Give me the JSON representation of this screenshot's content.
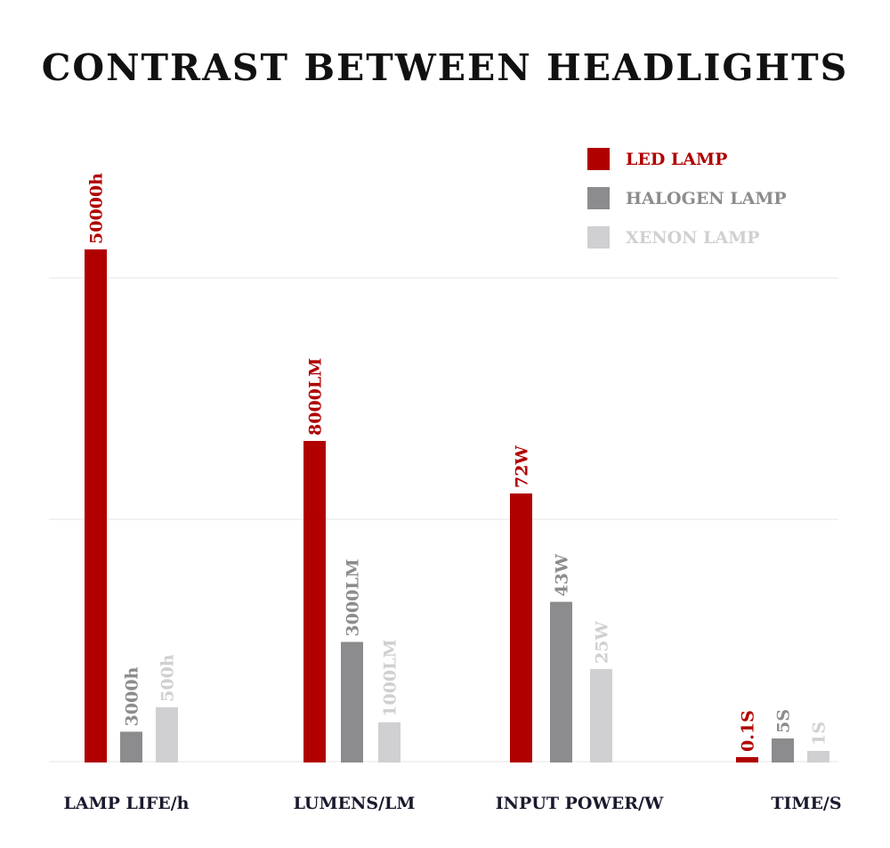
{
  "colors": {
    "led": "#b00000",
    "halogen": "#8c8c8e",
    "xenon": "#d0d0d2",
    "grid": "#e6e6e6",
    "category_text": "#1a1a2e"
  },
  "chart_data": {
    "type": "bar",
    "title": "CONTRAST BETWEEN HEADLIGHTS",
    "legend_position": "top-right",
    "grid": true,
    "series": [
      {
        "name": "LED LAMP",
        "color": "#b00000"
      },
      {
        "name": "HALOGEN LAMP",
        "color": "#8c8c8e"
      },
      {
        "name": "XENON LAMP",
        "color": "#d0d0d2"
      }
    ],
    "groups": [
      {
        "category": "LAMP LIFE/h",
        "values": [
          50000,
          3000,
          500
        ],
        "labels": [
          "50000h",
          "3000h",
          "500h"
        ]
      },
      {
        "category": "LUMENS/LM",
        "values": [
          8000,
          3000,
          1000
        ],
        "labels": [
          "8000LM",
          "3000LM",
          "1000LM"
        ]
      },
      {
        "category": "INPUT POWER/W",
        "values": [
          72,
          43,
          25
        ],
        "labels": [
          "72W",
          "43W",
          "25W"
        ]
      },
      {
        "category": "TIME/S",
        "values": [
          0.1,
          5,
          1
        ],
        "labels": [
          "0.1S",
          "5S",
          "1S"
        ]
      }
    ]
  }
}
